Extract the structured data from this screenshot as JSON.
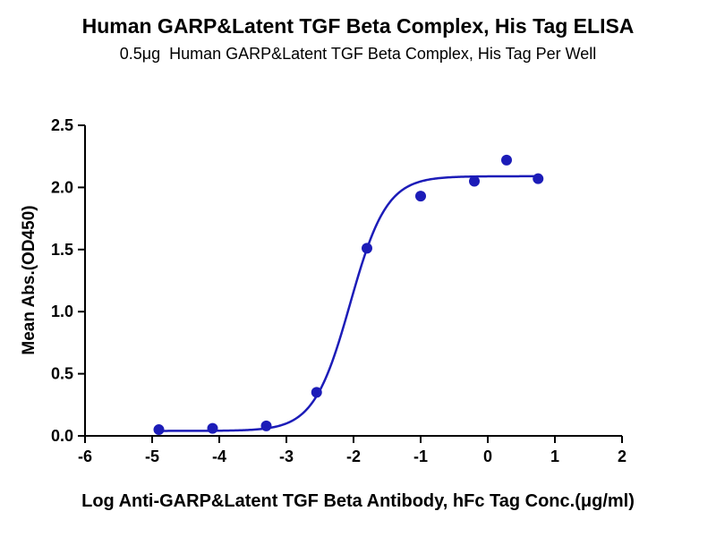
{
  "figure": {
    "background": "#ffffff"
  },
  "chart_data": {
    "type": "scatter",
    "title": "Human GARP&Latent TGF Beta Complex, His Tag ELISA",
    "subtitle": "0.5μg  Human GARP&Latent TGF Beta Complex, His Tag Per Well",
    "xlabel": "Log Anti-GARP&Latent TGF Beta Antibody, hFc Tag Conc.(μg/ml)",
    "ylabel": "Mean Abs.(OD450)",
    "xlim": [
      -6,
      2
    ],
    "ylim": [
      0,
      2.5
    ],
    "x_ticks": [
      -6,
      -5,
      -4,
      -3,
      -2,
      -1,
      0,
      1,
      2
    ],
    "x_tick_labels": [
      "-6",
      "-5",
      "-4",
      "-3",
      "-2",
      "-1",
      "0",
      "1",
      "2"
    ],
    "y_ticks": [
      0,
      0.5,
      1,
      1.5,
      2,
      2.5
    ],
    "y_tick_labels": [
      "0.0",
      "0.5",
      "1.0",
      "1.5",
      "2.0",
      "2.5"
    ],
    "grid": false,
    "legend": "none",
    "marker_color": "#1c1cb8",
    "line_color": "#1c1cb8",
    "axis_color": "#000000",
    "points": [
      {
        "x": -4.9,
        "y": 0.05
      },
      {
        "x": -4.1,
        "y": 0.06
      },
      {
        "x": -3.3,
        "y": 0.08
      },
      {
        "x": -2.55,
        "y": 0.35
      },
      {
        "x": -1.8,
        "y": 1.51
      },
      {
        "x": -1.0,
        "y": 1.93
      },
      {
        "x": -0.2,
        "y": 2.05
      },
      {
        "x": 0.28,
        "y": 2.22
      },
      {
        "x": 0.75,
        "y": 2.07
      }
    ],
    "fit_curve": {
      "model": "4PL",
      "bottom": 0.04,
      "top": 2.09,
      "logEC50": -2.05,
      "hillslope": 1.6,
      "x_range": [
        -4.9,
        0.78
      ]
    }
  }
}
